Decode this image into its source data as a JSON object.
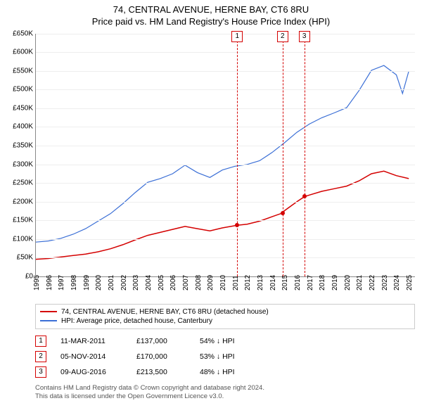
{
  "title": {
    "line1": "74, CENTRAL AVENUE, HERNE BAY, CT6 8RU",
    "line2": "Price paid vs. HM Land Registry's House Price Index (HPI)"
  },
  "chart": {
    "type": "line",
    "background_color": "#ffffff",
    "grid_color": "#eeeeee",
    "axis_color": "#888888",
    "ylim": [
      0,
      650000
    ],
    "ytick_step": 50000,
    "ytick_labels": [
      "£0",
      "£50K",
      "£100K",
      "£150K",
      "£200K",
      "£250K",
      "£300K",
      "£350K",
      "£400K",
      "£450K",
      "£500K",
      "£550K",
      "£600K",
      "£650K"
    ],
    "xlim": [
      1995,
      2025.5
    ],
    "xticks": [
      1995,
      1996,
      1997,
      1998,
      1999,
      2000,
      2001,
      2002,
      2003,
      2004,
      2005,
      2006,
      2007,
      2008,
      2009,
      2010,
      2011,
      2012,
      2013,
      2014,
      2015,
      2016,
      2017,
      2018,
      2019,
      2020,
      2021,
      2022,
      2023,
      2024,
      2025
    ],
    "label_fontsize": 10,
    "series": [
      {
        "name": "property",
        "label": "74, CENTRAL AVENUE, HERNE BAY, CT6 8RU (detached house)",
        "color": "#d40000",
        "line_width": 1.5,
        "points": [
          [
            1995,
            46000
          ],
          [
            1996,
            48000
          ],
          [
            1997,
            52000
          ],
          [
            1998,
            56000
          ],
          [
            1999,
            60000
          ],
          [
            2000,
            66000
          ],
          [
            2001,
            74000
          ],
          [
            2002,
            85000
          ],
          [
            2003,
            98000
          ],
          [
            2004,
            110000
          ],
          [
            2005,
            118000
          ],
          [
            2006,
            126000
          ],
          [
            2007,
            134000
          ],
          [
            2008,
            128000
          ],
          [
            2009,
            122000
          ],
          [
            2010,
            130000
          ],
          [
            2011.2,
            137000
          ],
          [
            2012,
            140000
          ],
          [
            2013,
            148000
          ],
          [
            2014,
            160000
          ],
          [
            2014.85,
            170000
          ],
          [
            2015,
            176000
          ],
          [
            2016,
            200000
          ],
          [
            2016.6,
            213500
          ],
          [
            2017,
            218000
          ],
          [
            2018,
            228000
          ],
          [
            2019,
            235000
          ],
          [
            2020,
            242000
          ],
          [
            2021,
            256000
          ],
          [
            2022,
            275000
          ],
          [
            2023,
            282000
          ],
          [
            2024,
            270000
          ],
          [
            2025,
            262000
          ]
        ]
      },
      {
        "name": "hpi",
        "label": "HPI: Average price, detached house, Canterbury",
        "color": "#3b6fd6",
        "line_width": 1.2,
        "points": [
          [
            1995,
            92000
          ],
          [
            1996,
            95000
          ],
          [
            1997,
            102000
          ],
          [
            1998,
            113000
          ],
          [
            1999,
            128000
          ],
          [
            2000,
            148000
          ],
          [
            2001,
            168000
          ],
          [
            2002,
            195000
          ],
          [
            2003,
            225000
          ],
          [
            2004,
            252000
          ],
          [
            2005,
            262000
          ],
          [
            2006,
            275000
          ],
          [
            2007,
            298000
          ],
          [
            2008,
            278000
          ],
          [
            2009,
            265000
          ],
          [
            2010,
            285000
          ],
          [
            2011,
            295000
          ],
          [
            2012,
            300000
          ],
          [
            2013,
            310000
          ],
          [
            2014,
            332000
          ],
          [
            2015,
            358000
          ],
          [
            2016,
            386000
          ],
          [
            2017,
            408000
          ],
          [
            2018,
            425000
          ],
          [
            2019,
            438000
          ],
          [
            2020,
            452000
          ],
          [
            2021,
            498000
          ],
          [
            2022,
            552000
          ],
          [
            2023,
            565000
          ],
          [
            2024,
            540000
          ],
          [
            2024.5,
            490000
          ],
          [
            2025,
            550000
          ]
        ]
      }
    ],
    "markers": [
      {
        "n": "1",
        "x": 2011.2,
        "y": 137000,
        "color": "#d40000"
      },
      {
        "n": "2",
        "x": 2014.85,
        "y": 170000,
        "color": "#d40000"
      },
      {
        "n": "3",
        "x": 2016.6,
        "y": 213500,
        "color": "#d40000"
      }
    ]
  },
  "legend": {
    "border_color": "#cccccc"
  },
  "events": [
    {
      "n": "1",
      "date": "11-MAR-2011",
      "price": "£137,000",
      "diff": "54% ↓ HPI",
      "color": "#d40000"
    },
    {
      "n": "2",
      "date": "05-NOV-2014",
      "price": "£170,000",
      "diff": "53% ↓ HPI",
      "color": "#d40000"
    },
    {
      "n": "3",
      "date": "09-AUG-2016",
      "price": "£213,500",
      "diff": "48% ↓ HPI",
      "color": "#d40000"
    }
  ],
  "footer": {
    "line1": "Contains HM Land Registry data © Crown copyright and database right 2024.",
    "line2": "This data is licensed under the Open Government Licence v3.0."
  }
}
